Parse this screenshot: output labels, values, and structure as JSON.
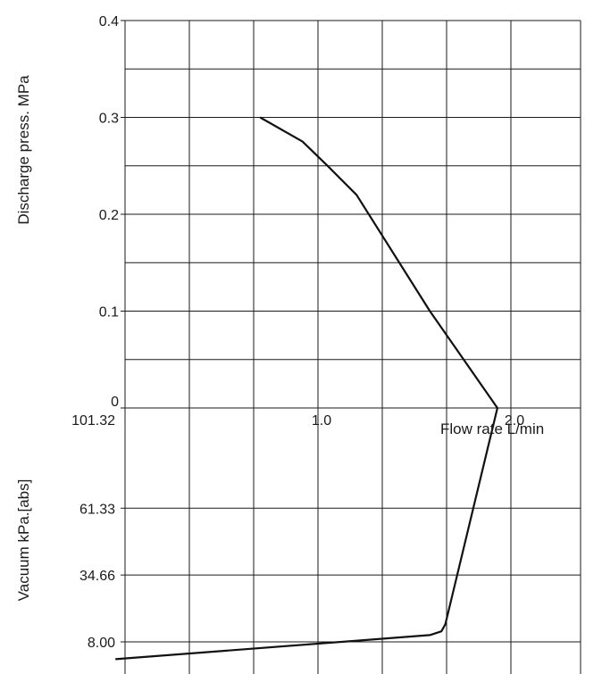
{
  "chart_data": {
    "type": "line",
    "title": "",
    "xlabel": "Flow rate L/min",
    "x_ticks": [
      {
        "value": 1.0,
        "label": "1.0"
      },
      {
        "value": 2.0,
        "label": "2.0"
      }
    ],
    "discharge_axis": {
      "label": "Discharge press. MPa",
      "ticks": [
        {
          "value": 0.4,
          "label": "0.4"
        },
        {
          "value": 0.3,
          "label": "0.3"
        },
        {
          "value": 0.2,
          "label": "0.2"
        },
        {
          "value": 0.1,
          "label": "0.1"
        },
        {
          "value": 0,
          "label": "0"
        }
      ]
    },
    "vacuum_axis": {
      "label": "Vacuum kPa.[abs]",
      "ticks": [
        {
          "value": 101.32,
          "label": "101.32"
        },
        {
          "value": 61.33,
          "label": "61.33"
        },
        {
          "value": 34.66,
          "label": "34.66"
        },
        {
          "value": 8.0,
          "label": "8.00"
        }
      ]
    },
    "discharge_curve": {
      "x": [
        0.7,
        0.92,
        1.05,
        1.2,
        1.58,
        1.93
      ],
      "y": [
        0.3,
        0.275,
        0.25,
        0.22,
        0.1,
        0.0
      ]
    },
    "vacuum_curve": {
      "x": [
        1.93,
        1.66,
        1.64,
        1.58,
        -0.05
      ],
      "y": [
        101.32,
        15.0,
        12.2,
        10.7,
        1.1
      ]
    },
    "grid": true,
    "legend": "none"
  }
}
